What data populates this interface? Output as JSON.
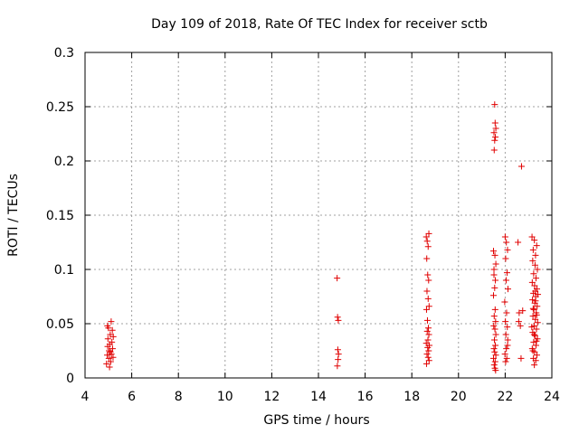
{
  "chart_data": {
    "type": "scatter",
    "title": "Day 109 of 2018, Rate Of TEC Index for receiver sctb",
    "xlabel": "GPS time / hours",
    "ylabel": "ROTI / TECUs",
    "xlim": [
      4,
      24
    ],
    "ylim": [
      0,
      0.3
    ],
    "x_ticks": [
      "4",
      "6",
      "8",
      "10",
      "12",
      "14",
      "16",
      "18",
      "20",
      "22",
      "24"
    ],
    "y_ticks": [
      "0",
      "0.05",
      "0.1",
      "0.15",
      "0.2",
      "0.25",
      "0.3"
    ],
    "grid": true,
    "marker": "+",
    "color": "#e00000",
    "series": [
      {
        "name": "ROTI",
        "points": [
          [
            4.92,
            0.013
          ],
          [
            4.95,
            0.021
          ],
          [
            4.97,
            0.029
          ],
          [
            4.98,
            0.036
          ],
          [
            5.0,
            0.046
          ],
          [
            5.02,
            0.018
          ],
          [
            5.03,
            0.025
          ],
          [
            5.05,
            0.01
          ],
          [
            5.06,
            0.031
          ],
          [
            5.08,
            0.04
          ],
          [
            5.1,
            0.015
          ],
          [
            5.12,
            0.052
          ],
          [
            5.13,
            0.022
          ],
          [
            5.15,
            0.033
          ],
          [
            5.17,
            0.044
          ],
          [
            5.18,
            0.027
          ],
          [
            5.2,
            0.019
          ],
          [
            5.21,
            0.038
          ],
          [
            4.96,
            0.048
          ],
          [
            5.09,
            0.024
          ],
          [
            14.8,
            0.092
          ],
          [
            14.82,
            0.056
          ],
          [
            14.85,
            0.053
          ],
          [
            14.83,
            0.026
          ],
          [
            14.86,
            0.022
          ],
          [
            14.84,
            0.017
          ],
          [
            14.81,
            0.011
          ],
          [
            18.62,
            0.13
          ],
          [
            18.66,
            0.126
          ],
          [
            18.7,
            0.121
          ],
          [
            18.73,
            0.133
          ],
          [
            18.64,
            0.11
          ],
          [
            18.68,
            0.095
          ],
          [
            18.72,
            0.09
          ],
          [
            18.65,
            0.08
          ],
          [
            18.7,
            0.073
          ],
          [
            18.74,
            0.066
          ],
          [
            18.63,
            0.063
          ],
          [
            18.67,
            0.053
          ],
          [
            18.71,
            0.046
          ],
          [
            18.66,
            0.043
          ],
          [
            18.73,
            0.04
          ],
          [
            18.62,
            0.032
          ],
          [
            18.68,
            0.028
          ],
          [
            18.72,
            0.025
          ],
          [
            18.65,
            0.022
          ],
          [
            18.7,
            0.019
          ],
          [
            18.74,
            0.016
          ],
          [
            18.63,
            0.013
          ],
          [
            18.69,
            0.035
          ],
          [
            18.75,
            0.03
          ],
          [
            21.55,
            0.252
          ],
          [
            21.57,
            0.235
          ],
          [
            21.6,
            0.23
          ],
          [
            21.52,
            0.226
          ],
          [
            21.58,
            0.222
          ],
          [
            21.55,
            0.219
          ],
          [
            21.53,
            0.21
          ],
          [
            21.5,
            0.117
          ],
          [
            21.56,
            0.113
          ],
          [
            21.6,
            0.105
          ],
          [
            21.52,
            0.095
          ],
          [
            21.58,
            0.09
          ],
          [
            21.55,
            0.083
          ],
          [
            21.5,
            0.076
          ],
          [
            21.57,
            0.063
          ],
          [
            21.53,
            0.057
          ],
          [
            21.59,
            0.052
          ],
          [
            21.51,
            0.048
          ],
          [
            21.56,
            0.045
          ],
          [
            21.6,
            0.04
          ],
          [
            21.54,
            0.035
          ],
          [
            21.58,
            0.03
          ],
          [
            21.52,
            0.027
          ],
          [
            21.55,
            0.024
          ],
          [
            21.6,
            0.021
          ],
          [
            21.5,
            0.018
          ],
          [
            21.57,
            0.015
          ],
          [
            21.53,
            0.012
          ],
          [
            21.56,
            0.009
          ],
          [
            21.59,
            0.007
          ],
          [
            21.52,
            0.1
          ],
          [
            22.0,
            0.13
          ],
          [
            22.05,
            0.125
          ],
          [
            22.1,
            0.118
          ],
          [
            22.02,
            0.11
          ],
          [
            22.08,
            0.097
          ],
          [
            22.04,
            0.09
          ],
          [
            22.12,
            0.082
          ],
          [
            21.98,
            0.07
          ],
          [
            22.06,
            0.06
          ],
          [
            22.01,
            0.052
          ],
          [
            22.09,
            0.047
          ],
          [
            22.03,
            0.04
          ],
          [
            22.11,
            0.035
          ],
          [
            22.05,
            0.027
          ],
          [
            21.99,
            0.022
          ],
          [
            22.07,
            0.018
          ],
          [
            22.02,
            0.015
          ],
          [
            22.1,
            0.03
          ],
          [
            22.55,
            0.125
          ],
          [
            22.7,
            0.195
          ],
          [
            22.6,
            0.06
          ],
          [
            22.65,
            0.048
          ],
          [
            22.68,
            0.018
          ],
          [
            22.58,
            0.052
          ],
          [
            22.75,
            0.062
          ],
          [
            23.15,
            0.13
          ],
          [
            23.25,
            0.127
          ],
          [
            23.35,
            0.122
          ],
          [
            23.2,
            0.118
          ],
          [
            23.3,
            0.113
          ],
          [
            23.18,
            0.108
          ],
          [
            23.28,
            0.104
          ],
          [
            23.38,
            0.1
          ],
          [
            23.22,
            0.096
          ],
          [
            23.32,
            0.092
          ],
          [
            23.16,
            0.088
          ],
          [
            23.26,
            0.085
          ],
          [
            23.36,
            0.082
          ],
          [
            23.21,
            0.078
          ],
          [
            23.31,
            0.075
          ],
          [
            23.17,
            0.072
          ],
          [
            23.27,
            0.069
          ],
          [
            23.37,
            0.066
          ],
          [
            23.23,
            0.063
          ],
          [
            23.33,
            0.06
          ],
          [
            23.19,
            0.057
          ],
          [
            23.29,
            0.054
          ],
          [
            23.39,
            0.051
          ],
          [
            23.24,
            0.048
          ],
          [
            23.34,
            0.045
          ],
          [
            23.18,
            0.042
          ],
          [
            23.28,
            0.039
          ],
          [
            23.38,
            0.036
          ],
          [
            23.22,
            0.033
          ],
          [
            23.32,
            0.03
          ],
          [
            23.16,
            0.027
          ],
          [
            23.26,
            0.024
          ],
          [
            23.36,
            0.021
          ],
          [
            23.21,
            0.018
          ],
          [
            23.31,
            0.016
          ],
          [
            23.25,
            0.012
          ],
          [
            23.35,
            0.058
          ],
          [
            23.2,
            0.064
          ],
          [
            23.3,
            0.071
          ],
          [
            23.4,
            0.077
          ],
          [
            23.14,
            0.047
          ],
          [
            23.24,
            0.04
          ],
          [
            23.34,
            0.034
          ],
          [
            23.19,
            0.025
          ],
          [
            23.29,
            0.08
          ]
        ]
      }
    ]
  }
}
